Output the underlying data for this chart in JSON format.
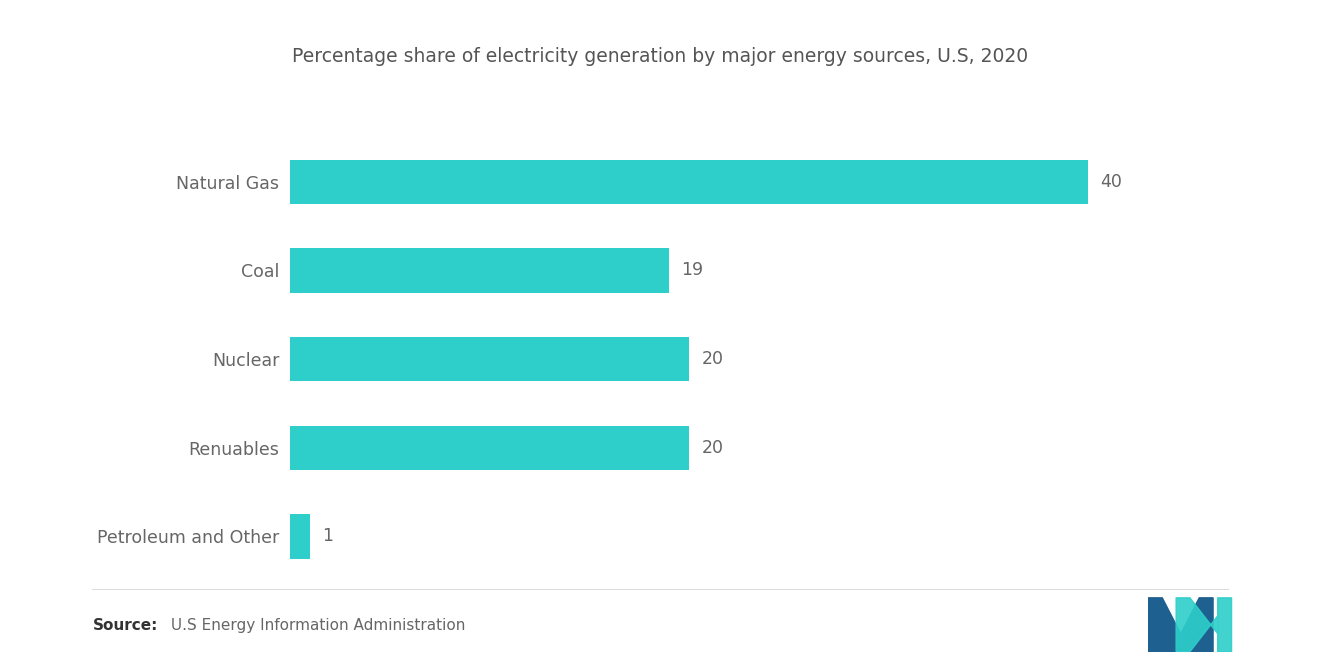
{
  "title": "Percentage share of electricity generation by major energy sources, U.S, 2020",
  "categories": [
    "Natural Gas",
    "Coal",
    "Nuclear",
    "Renuables",
    "Petroleum and Other"
  ],
  "values": [
    40,
    19,
    20,
    20,
    1
  ],
  "bar_color": "#2ecfca",
  "label_color": "#666666",
  "value_color": "#666666",
  "title_color": "#555555",
  "background_color": "#ffffff",
  "source_bold": "Source:",
  "source_rest": " U.S Energy Information Administration",
  "xlim": [
    0,
    45
  ],
  "bar_height": 0.5,
  "title_fontsize": 13.5,
  "label_fontsize": 12.5,
  "value_fontsize": 12.5,
  "source_fontsize": 11,
  "logo_teal": "#2ecfca",
  "logo_blue": "#1e6090"
}
